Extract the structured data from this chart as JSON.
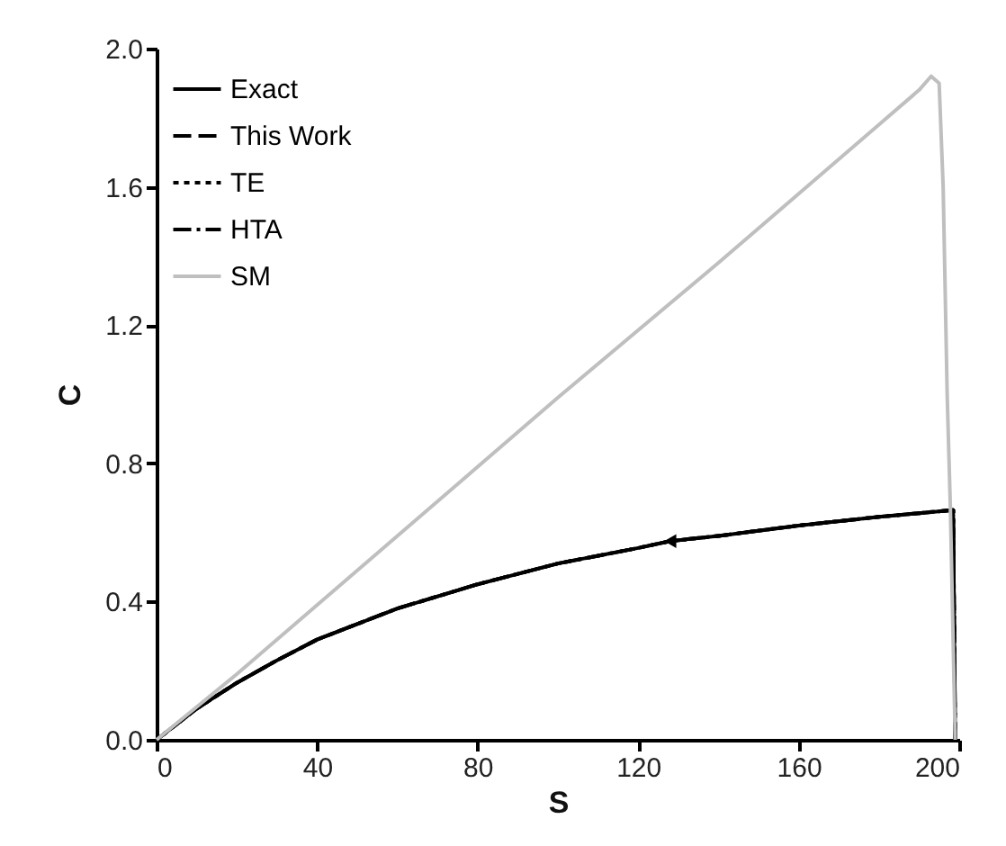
{
  "chart_data": {
    "type": "line",
    "xlabel": "S",
    "ylabel": "C",
    "xlim": [
      0,
      200
    ],
    "xticks": [
      0,
      40,
      80,
      120,
      160,
      200
    ],
    "ylim": [
      0,
      2.0
    ],
    "yticks": [
      {
        "value": 0,
        "label": "0.0"
      },
      {
        "value": 0.4,
        "label": "0.4"
      },
      {
        "value": 0.8,
        "label": "0.8"
      },
      {
        "value": 1.2,
        "label": "1.2"
      },
      {
        "value": 1.6,
        "label": "1.6"
      },
      {
        "value": 2.0,
        "label": "2.0"
      }
    ],
    "grid": false,
    "legend": "top left",
    "marker": "none",
    "series": [
      {
        "name": "Exact",
        "color": "#000000",
        "line_style": "solid",
        "x": [
          199,
          198.5,
          180,
          160,
          140,
          128,
          120,
          100,
          80,
          60,
          40,
          30,
          20,
          10,
          0
        ],
        "values": [
          0,
          0.665,
          0.645,
          0.62,
          0.59,
          0.575,
          0.555,
          0.51,
          0.45,
          0.38,
          0.29,
          0.23,
          0.165,
          0.09,
          0
        ]
      },
      {
        "name": "This Work",
        "color": "#000000",
        "line_style": "dashed",
        "x": [
          199,
          198.5,
          180,
          160,
          140,
          128,
          120,
          100,
          80,
          60,
          40,
          30,
          20,
          10,
          0
        ],
        "values": [
          0,
          0.665,
          0.645,
          0.62,
          0.59,
          0.575,
          0.555,
          0.51,
          0.45,
          0.38,
          0.29,
          0.23,
          0.165,
          0.09,
          0
        ]
      },
      {
        "name": "TE",
        "color": "#000000",
        "line_style": "dotted",
        "x": [
          199,
          198.5,
          180,
          160,
          140,
          128,
          120,
          100,
          80,
          60,
          40,
          30,
          20,
          10,
          0
        ],
        "values": [
          0,
          0.665,
          0.645,
          0.62,
          0.59,
          0.575,
          0.555,
          0.51,
          0.45,
          0.38,
          0.29,
          0.23,
          0.165,
          0.09,
          0
        ]
      },
      {
        "name": "HTA",
        "color": "#000000",
        "line_style": "dashdot",
        "x": [
          199,
          198.5,
          180,
          160,
          140,
          128,
          120,
          100,
          80,
          60,
          40,
          30,
          20,
          10,
          0
        ],
        "values": [
          0,
          0.665,
          0.645,
          0.62,
          0.59,
          0.575,
          0.555,
          0.51,
          0.45,
          0.38,
          0.29,
          0.23,
          0.165,
          0.09,
          0
        ]
      },
      {
        "name": "SM",
        "color": "#bfbfbf",
        "line_style": "solid",
        "x": [
          0,
          10,
          20,
          60,
          100,
          140,
          180,
          190,
          193,
          195,
          196,
          197,
          197.8,
          199
        ],
        "values": [
          0,
          0.095,
          0.19,
          0.59,
          0.99,
          1.38,
          1.78,
          1.88,
          1.92,
          1.9,
          1.6,
          1.0,
          0.67,
          0
        ]
      }
    ]
  }
}
